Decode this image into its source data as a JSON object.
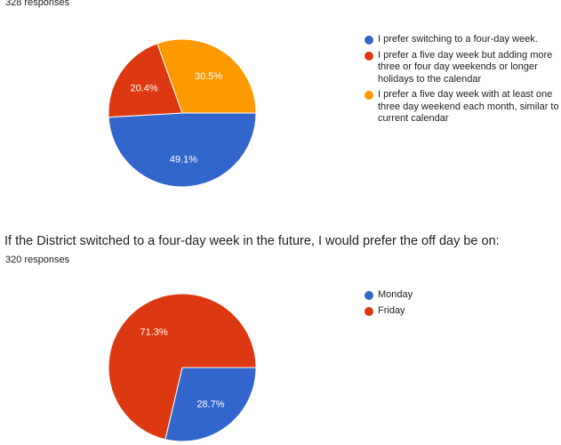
{
  "charts": [
    {
      "responses": "328 responses",
      "legend": [
        "I prefer switching to a four-day week.",
        "I prefer a five day week but adding more three or four day weekends or longer holidays to the calendar",
        "I prefer a five day week with at least one three day weekend each month, similar to current calendar"
      ]
    },
    {
      "question": "If the District switched to a four-day week in the future, I would prefer the off day be on:",
      "responses": "320 responses",
      "legend": [
        "Monday",
        "Friday"
      ]
    }
  ],
  "chart_data": [
    {
      "type": "pie",
      "slices": [
        {
          "value": 49.1,
          "label": "49.1%",
          "color": "#3366cc"
        },
        {
          "value": 20.4,
          "label": "20.4%",
          "color": "#dc3912"
        },
        {
          "value": 30.5,
          "label": "30.5%",
          "color": "#ff9900"
        }
      ],
      "legend_position": "right"
    },
    {
      "type": "pie",
      "slices": [
        {
          "value": 28.7,
          "label": "28.7%",
          "color": "#3366cc"
        },
        {
          "value": 71.3,
          "label": "71.3%",
          "color": "#dc3912"
        }
      ],
      "legend_position": "right"
    }
  ]
}
